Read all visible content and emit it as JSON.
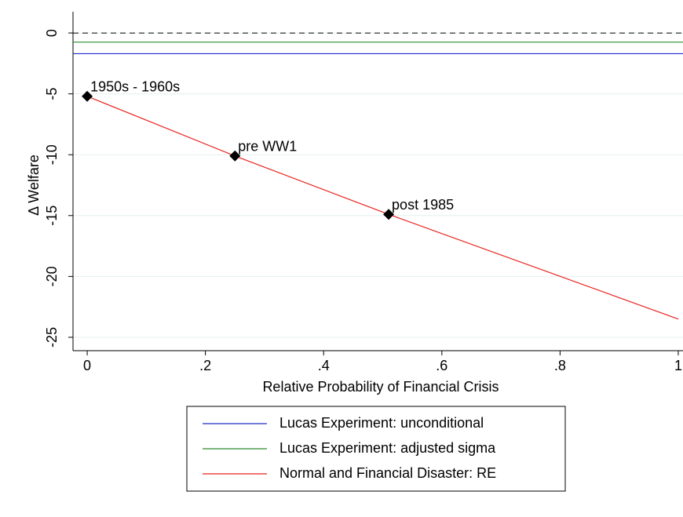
{
  "chart_data": {
    "type": "line",
    "xlabel": "Relative Probability of Financial Crisis",
    "ylabel": "Δ Welfare",
    "xlim": [
      -0.024,
      1.008
    ],
    "ylim": [
      -26.1,
      1.1
    ],
    "xticks": [
      0,
      {
        "value": 0.2,
        "label": ".2"
      },
      {
        "value": 0.4,
        "label": ".4"
      },
      {
        "value": 0.6,
        "label": ".6"
      },
      {
        "value": 0.8,
        "label": ".8"
      },
      1
    ],
    "yticks": [
      0,
      -5,
      -10,
      -15,
      -20,
      -25
    ],
    "grid": true,
    "reference_line": {
      "value": 0,
      "color": "#000000",
      "dashed": true
    },
    "series": [
      {
        "name": "Lucas Experiment: unconditional",
        "color": "#1f2fc8",
        "x": [
          -0.024,
          1.008
        ],
        "values": [
          -1.7,
          -1.7
        ]
      },
      {
        "name": "Lucas Experiment: adjusted sigma",
        "color": "#2e8b2e",
        "x": [
          -0.024,
          1.008
        ],
        "values": [
          -0.75,
          -0.75
        ]
      },
      {
        "name": "Normal and Financial Disaster: RE",
        "color": "#e8231f",
        "x": [
          0,
          0.25,
          0.51,
          1
        ],
        "values": [
          -5.2,
          -10.1,
          -14.9,
          -23.5
        ]
      }
    ],
    "points": {
      "color": "#000000",
      "x": [
        0,
        0.25,
        0.51
      ],
      "values": [
        -5.2,
        -10.1,
        -14.9
      ],
      "labels": [
        "1950s - 1960s",
        "pre WW1",
        "post 1985"
      ]
    }
  }
}
